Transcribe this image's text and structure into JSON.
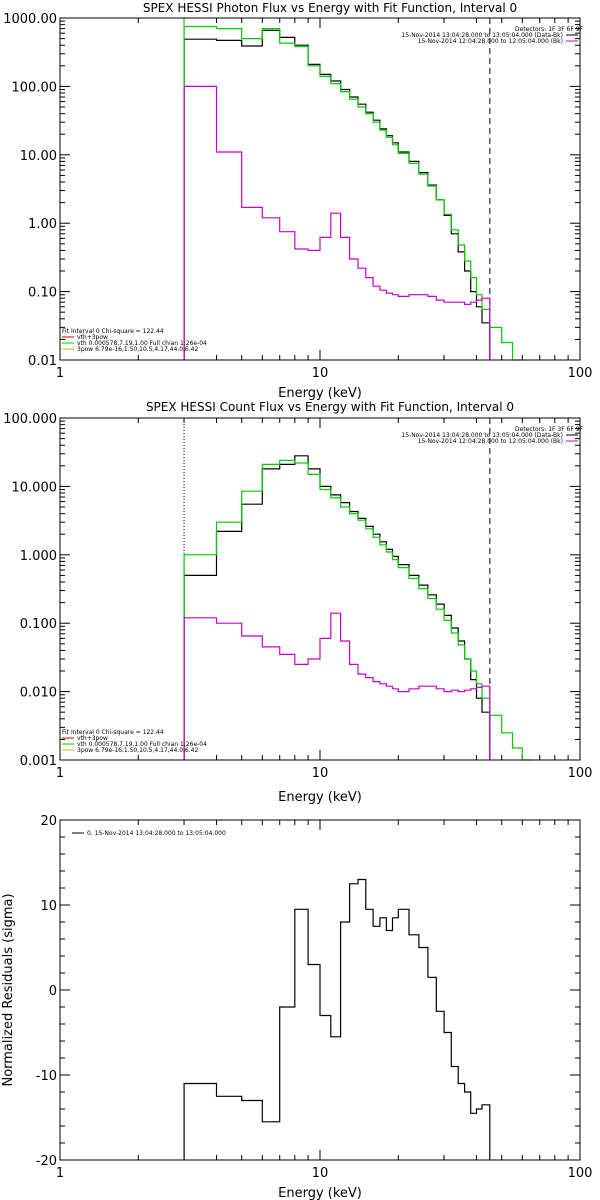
{
  "chart_data": [
    {
      "type": "line",
      "title": "SPEX HESSI Photon Flux vs Energy with Fit Function, Interval 0",
      "xlabel": "Energy (keV)",
      "ylabel": "",
      "xscale": "log",
      "yscale": "log",
      "xlim": [
        1,
        100
      ],
      "ylim": [
        0.01,
        1000
      ],
      "x_ticks": [
        "1",
        "10",
        "100"
      ],
      "y_ticks": [
        "0.01",
        "0.10",
        "1.00",
        "10.00",
        "100.00",
        "1000.00"
      ],
      "legend_right": {
        "header": "Detectors: 1F 3F 6F 9F",
        "items": [
          {
            "text": "15-Nov-2014 13:04:28.000 to 13:05:04.000 (Data-Bk)",
            "color": "#000000"
          },
          {
            "text": "15-Nov-2014 12:04:28.000 to 12:05:04.000 (Bk)",
            "color": "#c800c8"
          }
        ]
      },
      "legend_left": {
        "header": "Fit Interval 0   Chi-square = 122.44",
        "items": [
          {
            "text": "vth+3pow",
            "color": "#cc0000"
          },
          {
            "text": "vth 0.000578,7.19,1.00  Full chian 1.26e-04",
            "color": "#00cc00"
          },
          {
            "text": "3pow 6.79e-16,1.50,10.5,4.17,44.0,6.42",
            "color": "#c8b400"
          }
        ]
      },
      "vlines": [
        {
          "x": 3,
          "style": "solid",
          "color": "#00cc00"
        },
        {
          "x": 45,
          "style": "dashed",
          "color": "#000000"
        }
      ],
      "series": [
        {
          "color": "#000000",
          "edges": [
            3,
            4,
            5,
            6,
            7,
            8,
            9,
            10,
            11,
            12,
            13,
            14,
            15,
            16,
            17,
            18,
            19,
            20,
            22,
            24,
            26,
            28,
            30,
            32,
            34,
            36,
            38,
            40,
            42,
            45
          ],
          "values": [
            490,
            470,
            390,
            660,
            520,
            400,
            210,
            150,
            120,
            90,
            70,
            55,
            42,
            32,
            24,
            19,
            15,
            11,
            8,
            5.5,
            3.6,
            2.2,
            1.3,
            0.7,
            0.38,
            0.2,
            0.1,
            0.06,
            0.035
          ]
        },
        {
          "color": "#00cc00",
          "edges": [
            3,
            4,
            5,
            6,
            7,
            8,
            9,
            10,
            11,
            12,
            13,
            14,
            15,
            16,
            17,
            18,
            19,
            20,
            22,
            24,
            26,
            28,
            30,
            32,
            34,
            36,
            38,
            40,
            42,
            45,
            50,
            55,
            60
          ],
          "values": [
            750,
            700,
            500,
            700,
            430,
            380,
            200,
            140,
            110,
            84,
            65,
            50,
            40,
            30,
            23,
            18,
            14,
            10.5,
            7.5,
            5.2,
            3.5,
            2.2,
            1.35,
            0.8,
            0.48,
            0.28,
            0.16,
            0.09,
            0.055,
            0.03,
            0.018,
            0.01
          ]
        },
        {
          "color": "#c800c8",
          "edges": [
            3,
            4,
            5,
            6,
            7,
            8,
            9,
            10,
            11,
            12,
            13,
            14,
            15,
            16,
            17,
            18,
            19,
            20,
            22,
            24,
            26,
            28,
            30,
            32,
            34,
            36,
            38,
            40,
            42,
            45
          ],
          "values": [
            100,
            11,
            1.7,
            1.2,
            0.75,
            0.42,
            0.4,
            0.62,
            1.4,
            0.62,
            0.3,
            0.22,
            0.16,
            0.12,
            0.105,
            0.095,
            0.09,
            0.085,
            0.09,
            0.09,
            0.085,
            0.075,
            0.07,
            0.07,
            0.07,
            0.065,
            0.07,
            0.075,
            0.08
          ]
        }
      ]
    },
    {
      "type": "line",
      "title": "SPEX HESSI Count Flux vs Energy with Fit Function, Interval 0",
      "xlabel": "Energy (keV)",
      "ylabel": "",
      "xscale": "log",
      "yscale": "log",
      "xlim": [
        1,
        100
      ],
      "ylim": [
        0.001,
        100
      ],
      "x_ticks": [
        "1",
        "10",
        "100"
      ],
      "y_ticks": [
        "0.001",
        "0.010",
        "0.100",
        "1.000",
        "10.000",
        "100.000"
      ],
      "legend_right": {
        "header": "Detectors: 1F 3F 6F 9F",
        "items": [
          {
            "text": "15-Nov-2014 13:04:28.000 to 13:05:04.000 (Data-Bk)",
            "color": "#000000"
          },
          {
            "text": "15-Nov-2014 12:04:28.000 to 12:05:04.000 (Bk)",
            "color": "#c800c8"
          }
        ]
      },
      "legend_left": {
        "header": "Fit Interval 0   Chi-square = 122.44",
        "items": [
          {
            "text": "vth+3pow",
            "color": "#cc0000"
          },
          {
            "text": "vth 0.000578,7.19,1.00  Full chian 1.26e-04",
            "color": "#00cc00"
          },
          {
            "text": "3pow 6.79e-16,1.50,10.5,4.17,44.0,6.42",
            "color": "#c8b400"
          }
        ]
      },
      "vlines": [
        {
          "x": 3,
          "style": "dotted",
          "color": "#000000"
        },
        {
          "x": 45,
          "style": "dashed",
          "color": "#000000"
        }
      ],
      "series": [
        {
          "color": "#000000",
          "edges": [
            3,
            4,
            5,
            6,
            7,
            8,
            9,
            10,
            11,
            12,
            13,
            14,
            15,
            16,
            17,
            18,
            19,
            20,
            22,
            24,
            26,
            28,
            30,
            32,
            34,
            36,
            38,
            40,
            42,
            45
          ],
          "values": [
            0.5,
            2.2,
            5.5,
            18,
            21,
            28,
            18,
            10,
            7.5,
            5.8,
            4.3,
            3.4,
            2.6,
            2.0,
            1.55,
            1.2,
            0.95,
            0.72,
            0.5,
            0.36,
            0.26,
            0.19,
            0.13,
            0.085,
            0.055,
            0.03,
            0.015,
            0.008,
            0.005
          ]
        },
        {
          "color": "#00cc00",
          "edges": [
            3,
            4,
            5,
            6,
            7,
            8,
            9,
            10,
            11,
            12,
            13,
            14,
            15,
            16,
            17,
            18,
            19,
            20,
            22,
            24,
            26,
            28,
            30,
            32,
            34,
            36,
            38,
            40,
            42,
            45,
            50,
            55,
            60,
            65
          ],
          "values": [
            1.0,
            3.0,
            8.5,
            21,
            24,
            22,
            15,
            9.0,
            6.8,
            5.0,
            4.0,
            3.2,
            2.4,
            1.8,
            1.4,
            1.1,
            0.85,
            0.65,
            0.45,
            0.32,
            0.23,
            0.16,
            0.11,
            0.072,
            0.048,
            0.03,
            0.02,
            0.013,
            0.008,
            0.0045,
            0.0025,
            0.0015,
            0.001
          ]
        },
        {
          "color": "#c800c8",
          "edges": [
            3,
            4,
            5,
            6,
            7,
            8,
            9,
            10,
            11,
            12,
            13,
            14,
            15,
            16,
            17,
            18,
            19,
            20,
            22,
            24,
            26,
            28,
            30,
            32,
            34,
            36,
            38,
            40,
            42,
            45
          ],
          "values": [
            0.12,
            0.1,
            0.065,
            0.045,
            0.035,
            0.025,
            0.03,
            0.06,
            0.14,
            0.055,
            0.025,
            0.018,
            0.016,
            0.014,
            0.013,
            0.012,
            0.011,
            0.01,
            0.011,
            0.012,
            0.012,
            0.011,
            0.01,
            0.0105,
            0.01,
            0.0105,
            0.011,
            0.0115,
            0.012
          ]
        }
      ]
    },
    {
      "type": "line",
      "title": "",
      "xlabel": "Energy (keV)",
      "ylabel": "Normalized Residuals (sigma)",
      "xscale": "log",
      "yscale": "linear",
      "xlim": [
        1,
        100
      ],
      "ylim": [
        -20,
        20
      ],
      "x_ticks": [
        "1",
        "10",
        "100"
      ],
      "y_ticks": [
        "-20",
        "-10",
        "0",
        "10",
        "20"
      ],
      "legend": {
        "items": [
          {
            "text": "0. 15-Nov-2014 13:04:28.000 to 13:05:04.000",
            "color": "#000000"
          }
        ]
      },
      "series": [
        {
          "color": "#000000",
          "edges": [
            3,
            4,
            5,
            6,
            7,
            8,
            9,
            10,
            11,
            12,
            13,
            14,
            15,
            16,
            17,
            18,
            19,
            20,
            22,
            24,
            26,
            28,
            30,
            32,
            34,
            36,
            38,
            40,
            42,
            45
          ],
          "values": [
            -11,
            -12.5,
            -13,
            -15.5,
            -2,
            9.5,
            3,
            -3,
            -5.5,
            8,
            12.5,
            13,
            9.5,
            7.5,
            8.5,
            7,
            8.5,
            9.5,
            6.5,
            5,
            1.5,
            -2.5,
            -5,
            -9,
            -11,
            -12,
            -14.5,
            -14,
            -13.5
          ]
        }
      ]
    }
  ]
}
